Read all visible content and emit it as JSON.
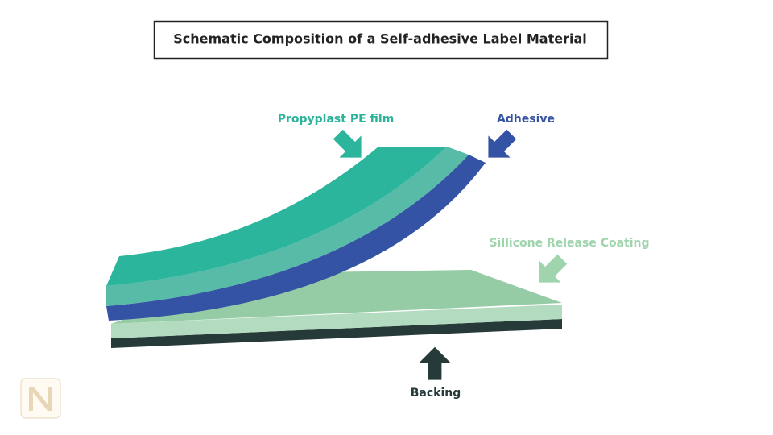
{
  "header": {
    "title": "Schematic Composition of a Self-adhesive Label Material"
  },
  "labels": {
    "film": "Propyplast PE film",
    "adhesive": "Adhesive",
    "coating": "Sillicone Release Coating",
    "backing": "Backing"
  }
}
